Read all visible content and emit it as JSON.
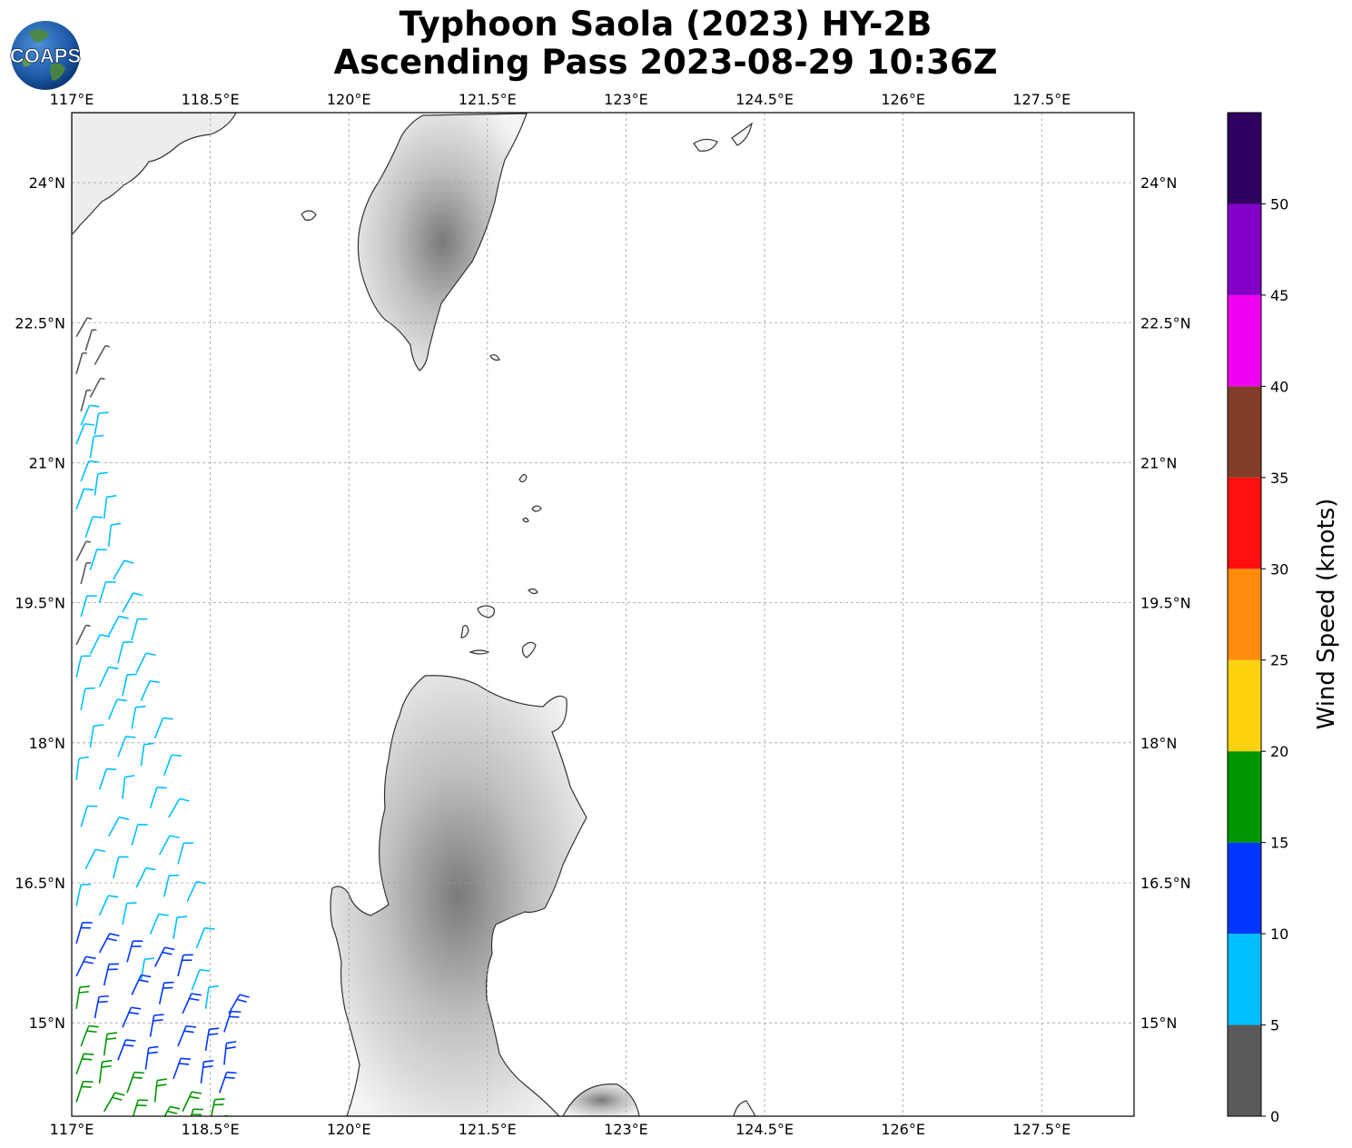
{
  "title": {
    "line1": "Typhoon Saola (2023) HY-2B",
    "line2": "Ascending Pass 2023-08-29 10:36Z"
  },
  "logo": {
    "text": "COAPS",
    "icon": "globe-logo-icon"
  },
  "map": {
    "lon_range": [
      117.0,
      128.5
    ],
    "lat_range": [
      14.0,
      24.75
    ],
    "lon_ticks": [
      117.0,
      118.5,
      120.0,
      121.5,
      123.0,
      124.5,
      126.0,
      127.5
    ],
    "lon_labels": [
      "117°E",
      "118.5°E",
      "120°E",
      "121.5°E",
      "123°E",
      "124.5°E",
      "126°E",
      "127.5°E"
    ],
    "lat_ticks": [
      24.0,
      22.5,
      21.0,
      19.5,
      18.0,
      16.5,
      15.0
    ],
    "lat_labels": [
      "24°N",
      "22.5°N",
      "21°N",
      "19.5°N",
      "18°N",
      "16.5°N",
      "15°N"
    ],
    "gridlines": true,
    "land_regions": [
      "Taiwan",
      "Luzon",
      "China coast",
      "Babuyan Islands",
      "Batanes Islands"
    ]
  },
  "colorbar": {
    "label": "Wind Speed (knots)",
    "bins": [
      {
        "min": 0,
        "max": 5,
        "color": "#5a5a5a"
      },
      {
        "min": 5,
        "max": 10,
        "color": "#00bfff"
      },
      {
        "min": 10,
        "max": 15,
        "color": "#0037ff"
      },
      {
        "min": 15,
        "max": 20,
        "color": "#009600"
      },
      {
        "min": 20,
        "max": 25,
        "color": "#ffd20f"
      },
      {
        "min": 25,
        "max": 30,
        "color": "#ff8c0a"
      },
      {
        "min": 30,
        "max": 35,
        "color": "#ff0f0f"
      },
      {
        "min": 35,
        "max": 40,
        "color": "#823c28"
      },
      {
        "min": 40,
        "max": 45,
        "color": "#f000f0"
      },
      {
        "min": 45,
        "max": 50,
        "color": "#8200c8"
      },
      {
        "min": 50,
        "max": 55,
        "color": "#2d005f"
      }
    ],
    "tick_labels": [
      "0",
      "5",
      "10",
      "15",
      "20",
      "25",
      "30",
      "35",
      "40",
      "45",
      "50"
    ]
  },
  "chart_data": {
    "type": "scatter",
    "description_kind": "wind barbs",
    "units": "knots",
    "x_label": "Longitude",
    "y_label": "Latitude",
    "xlim": [
      117.0,
      128.5
    ],
    "ylim": [
      14.0,
      24.75
    ],
    "series": [
      {
        "name": "0-5 kt",
        "color": "#5a5a5a",
        "points": [
          [
            117.05,
            22.35
          ],
          [
            117.15,
            22.2
          ],
          [
            117.25,
            22.05
          ],
          [
            117.05,
            21.95
          ],
          [
            117.2,
            21.7
          ],
          [
            117.1,
            21.55
          ],
          [
            117.05,
            19.95
          ],
          [
            117.1,
            19.7
          ],
          [
            117.05,
            19.05
          ]
        ]
      },
      {
        "name": "5-10 kt",
        "color": "#00bfff",
        "points": [
          [
            117.1,
            21.4
          ],
          [
            117.25,
            21.3
          ],
          [
            117.05,
            21.2
          ],
          [
            117.2,
            21.05
          ],
          [
            117.1,
            20.8
          ],
          [
            117.25,
            20.65
          ],
          [
            117.05,
            20.5
          ],
          [
            117.35,
            20.4
          ],
          [
            117.15,
            20.2
          ],
          [
            117.4,
            20.1
          ],
          [
            117.2,
            19.85
          ],
          [
            117.45,
            19.75
          ],
          [
            117.3,
            19.5
          ],
          [
            117.55,
            19.4
          ],
          [
            117.1,
            19.35
          ],
          [
            117.4,
            19.15
          ],
          [
            117.65,
            19.1
          ],
          [
            117.2,
            18.95
          ],
          [
            117.5,
            18.85
          ],
          [
            117.7,
            18.75
          ],
          [
            117.05,
            18.7
          ],
          [
            117.3,
            18.6
          ],
          [
            117.55,
            18.5
          ],
          [
            117.75,
            18.45
          ],
          [
            117.1,
            18.35
          ],
          [
            117.4,
            18.25
          ],
          [
            117.65,
            18.15
          ],
          [
            117.9,
            18.05
          ],
          [
            117.2,
            17.95
          ],
          [
            117.5,
            17.85
          ],
          [
            117.75,
            17.75
          ],
          [
            118.0,
            17.65
          ],
          [
            117.05,
            17.6
          ],
          [
            117.3,
            17.5
          ],
          [
            117.55,
            17.4
          ],
          [
            117.85,
            17.3
          ],
          [
            118.05,
            17.2
          ],
          [
            117.1,
            17.1
          ],
          [
            117.4,
            17.0
          ],
          [
            117.65,
            16.9
          ],
          [
            117.95,
            16.8
          ],
          [
            118.15,
            16.7
          ],
          [
            117.15,
            16.65
          ],
          [
            117.45,
            16.55
          ],
          [
            117.7,
            16.45
          ],
          [
            118.0,
            16.35
          ],
          [
            118.25,
            16.3
          ],
          [
            117.05,
            16.25
          ],
          [
            117.3,
            16.15
          ],
          [
            117.55,
            16.05
          ],
          [
            117.85,
            15.95
          ],
          [
            118.1,
            15.9
          ],
          [
            118.35,
            15.8
          ],
          [
            117.75,
            15.45
          ],
          [
            118.3,
            15.35
          ],
          [
            118.45,
            15.15
          ]
        ]
      },
      {
        "name": "10-15 kt",
        "color": "#0037ff",
        "points": [
          [
            117.05,
            15.85
          ],
          [
            117.3,
            15.75
          ],
          [
            117.6,
            15.65
          ],
          [
            117.9,
            15.6
          ],
          [
            118.15,
            15.5
          ],
          [
            117.05,
            15.5
          ],
          [
            117.35,
            15.4
          ],
          [
            117.65,
            15.3
          ],
          [
            117.95,
            15.2
          ],
          [
            118.2,
            15.1
          ],
          [
            117.25,
            15.05
          ],
          [
            117.55,
            14.95
          ],
          [
            117.85,
            14.85
          ],
          [
            118.15,
            14.75
          ],
          [
            118.45,
            14.7
          ],
          [
            117.5,
            14.6
          ],
          [
            117.8,
            14.5
          ],
          [
            118.1,
            14.4
          ],
          [
            118.4,
            14.35
          ],
          [
            118.6,
            14.25
          ],
          [
            118.65,
            14.55
          ],
          [
            118.65,
            14.9
          ],
          [
            118.7,
            15.1
          ]
        ]
      },
      {
        "name": "15-20 kt",
        "color": "#009600",
        "points": [
          [
            117.05,
            15.15
          ],
          [
            117.1,
            14.75
          ],
          [
            117.35,
            14.65
          ],
          [
            117.05,
            14.45
          ],
          [
            117.3,
            14.35
          ],
          [
            117.6,
            14.25
          ],
          [
            117.9,
            14.15
          ],
          [
            117.05,
            14.15
          ],
          [
            117.35,
            14.05
          ],
          [
            117.65,
            13.95
          ],
          [
            117.95,
            13.9
          ],
          [
            118.25,
            13.85
          ],
          [
            118.55,
            13.8
          ],
          [
            118.8,
            13.75
          ],
          [
            117.8,
            13.75
          ],
          [
            118.1,
            13.7
          ],
          [
            118.4,
            13.65
          ],
          [
            118.7,
            13.6
          ],
          [
            118.2,
            14.05
          ],
          [
            118.5,
            13.95
          ]
        ]
      }
    ]
  }
}
